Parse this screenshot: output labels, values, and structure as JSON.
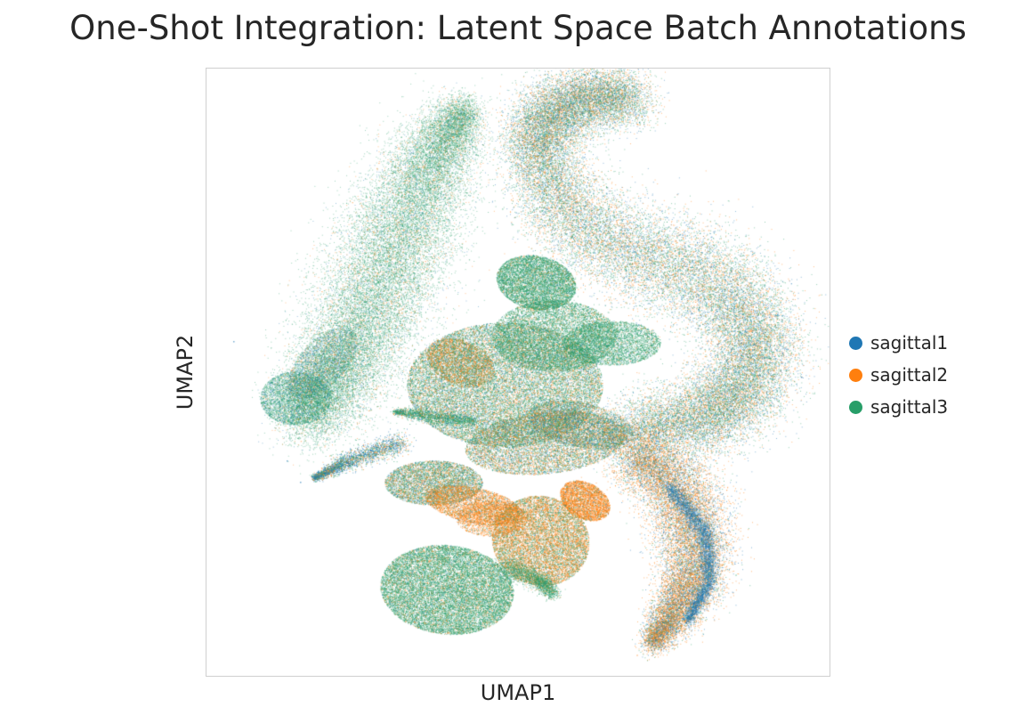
{
  "chart_data": {
    "type": "scatter",
    "title": "One-Shot Integration: Latent Space Batch Annotations",
    "xlabel": "UMAP1",
    "ylabel": "UMAP2",
    "xticks": [],
    "yticks": [],
    "grid": false,
    "legend_position": "right",
    "series": [
      {
        "name": "sagittal1",
        "color": "#1f77b4"
      },
      {
        "name": "sagittal2",
        "color": "#ff7f0e"
      },
      {
        "name": "sagittal3",
        "color": "#279e68"
      }
    ]
  }
}
